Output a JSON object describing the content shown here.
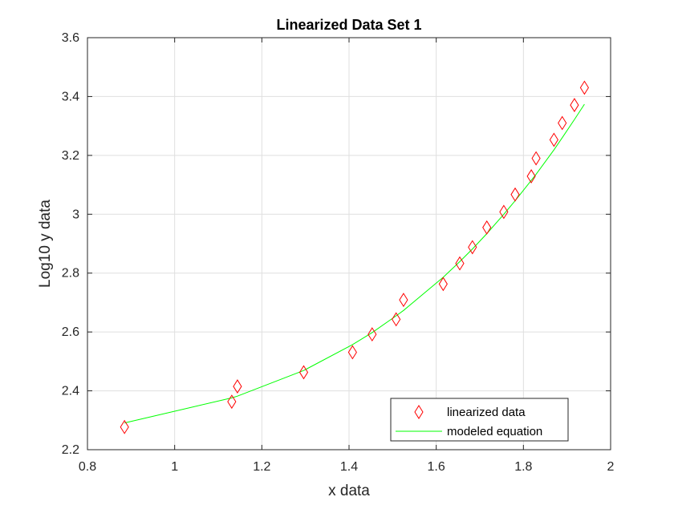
{
  "chart_data": {
    "type": "scatter",
    "title": "Linearized Data Set 1",
    "xlabel": "x data",
    "ylabel": "Log10 y data",
    "xlim": [
      0.8,
      2.0
    ],
    "ylim": [
      2.2,
      3.6
    ],
    "xticks": [
      0.8,
      1.0,
      1.2,
      1.4,
      1.6,
      1.8,
      2.0
    ],
    "xtick_labels": [
      "0.8",
      "1",
      "1.2",
      "1.4",
      "1.6",
      "1.8",
      "2"
    ],
    "yticks": [
      2.2,
      2.4,
      2.6,
      2.8,
      3.0,
      3.2,
      3.4,
      3.6
    ],
    "ytick_labels": [
      "2.2",
      "2.4",
      "2.6",
      "2.8",
      "3",
      "3.2",
      "3.4",
      "3.6"
    ],
    "grid": true,
    "legend_position": "bottom-right",
    "series": [
      {
        "name": "linearized data",
        "kind": "scatter",
        "marker": "diamond",
        "color": "#ff0000",
        "x": [
          0.885,
          1.131,
          1.144,
          1.296,
          1.408,
          1.453,
          1.508,
          1.525,
          1.616,
          1.654,
          1.683,
          1.716,
          1.755,
          1.781,
          1.818,
          1.829,
          1.87,
          1.889,
          1.917,
          1.94
        ],
        "y": [
          2.277,
          2.363,
          2.415,
          2.463,
          2.531,
          2.592,
          2.643,
          2.709,
          2.763,
          2.833,
          2.888,
          2.955,
          3.008,
          3.067,
          3.129,
          3.19,
          3.253,
          3.31,
          3.371,
          3.43
        ]
      },
      {
        "name": "modeled equation",
        "kind": "line",
        "color": "#00ff00",
        "x": [
          0.885,
          1.131,
          1.144,
          1.296,
          1.408,
          1.453,
          1.508,
          1.525,
          1.616,
          1.654,
          1.683,
          1.716,
          1.755,
          1.781,
          1.818,
          1.829,
          1.87,
          1.889,
          1.917,
          1.94
        ],
        "y": [
          2.291,
          2.376,
          2.382,
          2.469,
          2.557,
          2.598,
          2.655,
          2.673,
          2.786,
          2.839,
          2.882,
          2.934,
          3.0,
          3.046,
          3.115,
          3.136,
          3.219,
          3.26,
          3.322,
          3.374
        ]
      }
    ]
  }
}
